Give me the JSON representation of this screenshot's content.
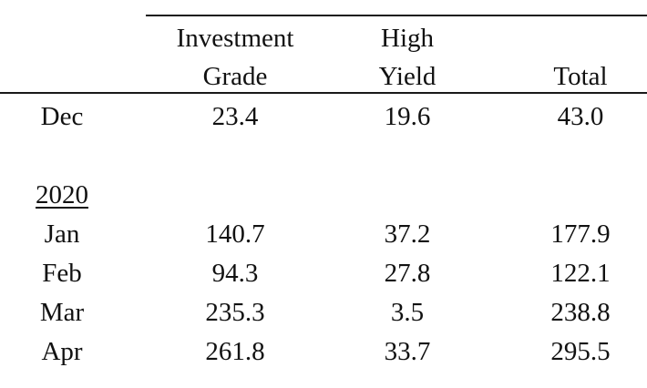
{
  "table": {
    "headers": {
      "investment_grade": [
        "Investment",
        "Grade"
      ],
      "high_yield": [
        "High",
        "Yield"
      ],
      "total": "Total"
    },
    "rows": [
      {
        "label": "Dec",
        "investment_grade": "23.4",
        "high_yield": "19.6",
        "total": "43.0"
      },
      {
        "label": "Jan",
        "investment_grade": "140.7",
        "high_yield": "37.2",
        "total": "177.9"
      },
      {
        "label": "Feb",
        "investment_grade": "94.3",
        "high_yield": "27.8",
        "total": "122.1"
      },
      {
        "label": "Mar",
        "investment_grade": "235.3",
        "high_yield": "3.5",
        "total": "238.8"
      },
      {
        "label": "Apr",
        "investment_grade": "261.8",
        "high_yield": "33.7",
        "total": "295.5"
      }
    ],
    "year_label": "2020"
  }
}
